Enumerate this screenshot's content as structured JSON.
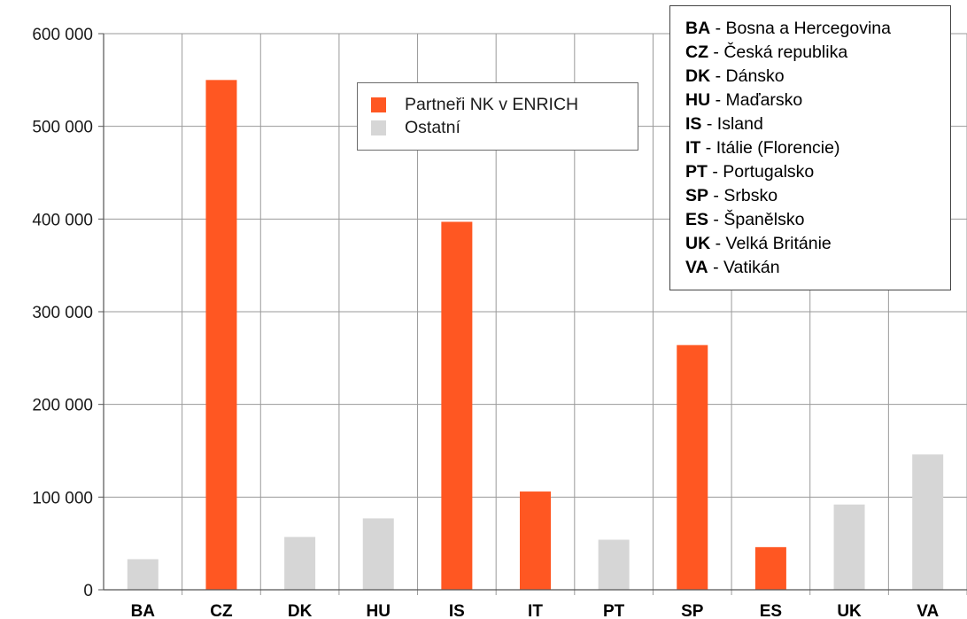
{
  "chart_data": {
    "type": "bar",
    "categories": [
      "BA",
      "CZ",
      "DK",
      "HU",
      "IS",
      "IT",
      "PT",
      "SP",
      "ES",
      "UK",
      "VA"
    ],
    "values": [
      33000,
      550000,
      57000,
      77000,
      397000,
      106000,
      54000,
      264000,
      46000,
      92000,
      146000
    ],
    "series": [
      {
        "name": "Partneři NK v ENRICH",
        "color": "#ff5722"
      },
      {
        "name": "Ostatní",
        "color": "#d6d6d6"
      }
    ],
    "series_membership": [
      "Ostatní",
      "Partneři NK v ENRICH",
      "Ostatní",
      "Ostatní",
      "Partneři NK v ENRICH",
      "Partneři NK v ENRICH",
      "Ostatní",
      "Partneři NK v ENRICH",
      "Partneři NK v ENRICH",
      "Ostatní",
      "Ostatní"
    ],
    "ylim": [
      0,
      600000
    ],
    "yticks": [
      0,
      100000,
      200000,
      300000,
      400000,
      500000,
      600000
    ],
    "ytick_labels": [
      "0",
      "100 000",
      "200 000",
      "300 000",
      "400 000",
      "500 000",
      "600 000"
    ],
    "grid": true,
    "legend_placement": "top-center"
  },
  "abbreviations": [
    {
      "code": "BA",
      "sep": " - ",
      "name": "Bosna a Hercegovina"
    },
    {
      "code": "CZ",
      "sep": " - ",
      "name": "Česká republika"
    },
    {
      "code": "DK",
      "sep": " - ",
      "name": "Dánsko"
    },
    {
      "code": "HU",
      "sep": " - ",
      "name": "Maďarsko"
    },
    {
      "code": "IS",
      "sep": " - ",
      "name": "Island"
    },
    {
      "code": "IT",
      "sep": " - ",
      "name": "Itálie (Florencie)"
    },
    {
      "code": "PT",
      "sep": " - ",
      "name": "Portugalsko"
    },
    {
      "code": "SP",
      "sep": " - ",
      "name": "Srbsko"
    },
    {
      "code": "ES",
      "sep": " - ",
      "name": "Španělsko"
    },
    {
      "code": "UK",
      "sep": " - ",
      "name": "Velká Británie"
    },
    {
      "code": "VA",
      "sep": " - ",
      "name": "Vatikán"
    }
  ]
}
